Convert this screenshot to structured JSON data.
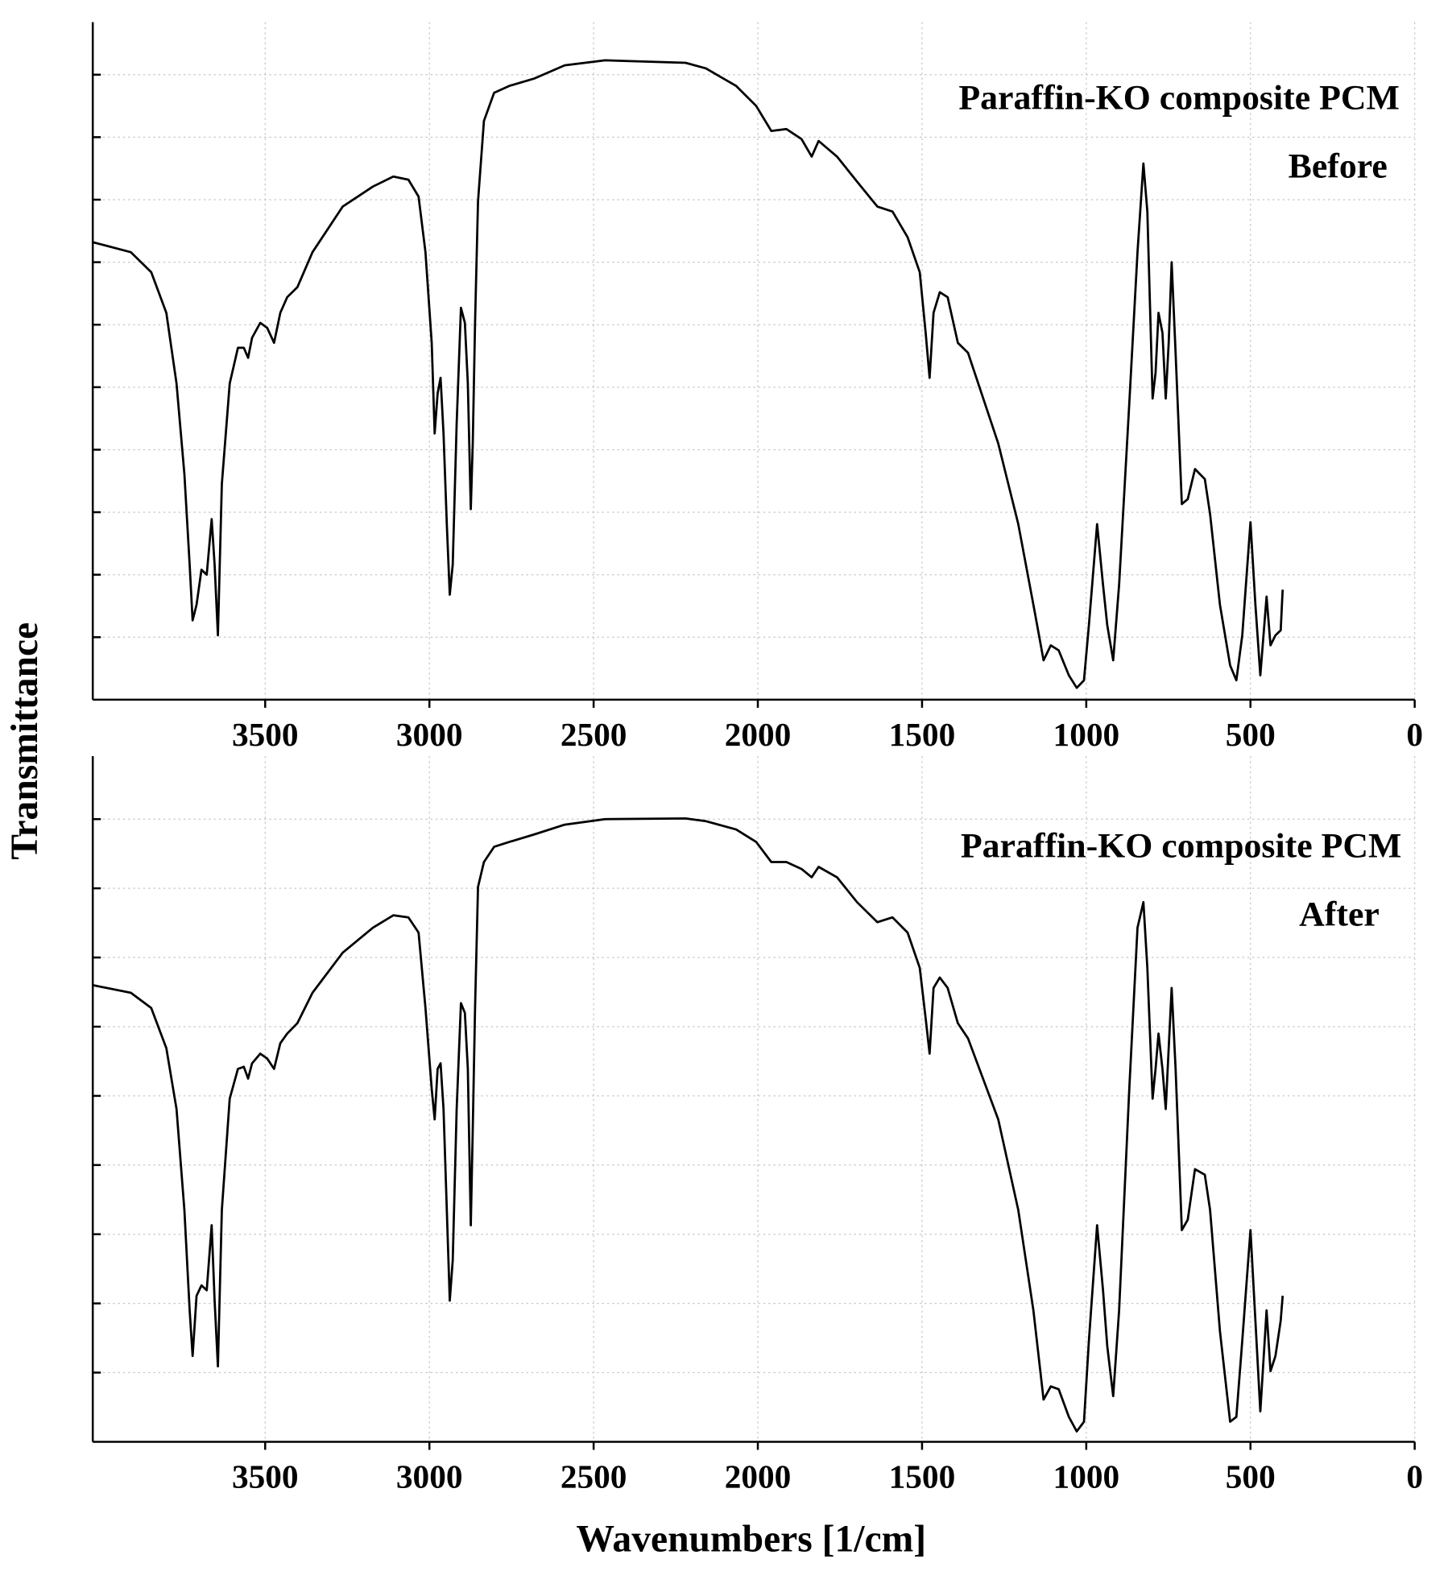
{
  "chart_data": [
    {
      "type": "line",
      "annotations": [
        "Paraffin-KO composite PCM",
        "Before"
      ],
      "ylabel": "Transmittance",
      "x": [
        4025,
        3909,
        3847,
        3801,
        3770,
        3746,
        3730,
        3721,
        3709,
        3694,
        3678,
        3663,
        3654,
        3644,
        3632,
        3608,
        3583,
        3565,
        3552,
        3540,
        3515,
        3494,
        3473,
        3454,
        3433,
        3402,
        3356,
        3264,
        3172,
        3110,
        3064,
        3033,
        3012,
        2993,
        2984,
        2975,
        2966,
        2957,
        2947,
        2938,
        2929,
        2917,
        2904,
        2892,
        2883,
        2874,
        2868,
        2861,
        2852,
        2834,
        2803,
        2757,
        2680,
        2588,
        2465,
        2220,
        2158,
        2066,
        2005,
        1959,
        1913,
        1867,
        1836,
        1815,
        1759,
        1698,
        1636,
        1590,
        1544,
        1507,
        1489,
        1477,
        1465,
        1446,
        1422,
        1391,
        1360,
        1268,
        1207,
        1161,
        1130,
        1108,
        1084,
        1053,
        1029,
        1007,
        992,
        967,
        949,
        936,
        918,
        900,
        869,
        844,
        826,
        814,
        798,
        789,
        780,
        768,
        758,
        749,
        740,
        728,
        709,
        691,
        669,
        639,
        623,
        593,
        562,
        543,
        525,
        500,
        485,
        470,
        451,
        439,
        424,
        408,
        402
      ],
      "values": [
        7.32,
        7.16,
        6.84,
        6.19,
        5.06,
        3.61,
        2.16,
        1.27,
        1.52,
        2.08,
        2.0,
        2.89,
        2.16,
        1.03,
        3.45,
        5.06,
        5.63,
        5.63,
        5.47,
        5.79,
        6.03,
        5.95,
        5.71,
        6.19,
        6.44,
        6.6,
        7.16,
        7.89,
        8.21,
        8.37,
        8.32,
        8.05,
        7.16,
        5.71,
        4.26,
        4.9,
        5.15,
        4.26,
        2.81,
        1.68,
        2.16,
        4.42,
        6.27,
        6.03,
        5.06,
        3.05,
        4.1,
        6.03,
        7.97,
        9.26,
        9.71,
        9.82,
        9.94,
        10.15,
        10.23,
        10.19,
        10.1,
        9.82,
        9.5,
        9.1,
        9.13,
        8.97,
        8.69,
        8.94,
        8.69,
        8.29,
        7.89,
        7.81,
        7.4,
        6.84,
        5.87,
        5.15,
        6.19,
        6.52,
        6.44,
        5.71,
        5.55,
        4.1,
        2.81,
        1.52,
        0.63,
        0.87,
        0.79,
        0.39,
        0.19,
        0.31,
        1.19,
        2.81,
        1.84,
        1.19,
        0.63,
        1.84,
        4.74,
        7.16,
        8.58,
        7.81,
        4.82,
        5.23,
        6.19,
        5.87,
        4.82,
        5.71,
        7.0,
        5.55,
        3.13,
        3.21,
        3.69,
        3.53,
        2.97,
        1.52,
        0.55,
        0.31,
        1.03,
        2.84,
        1.52,
        0.39,
        1.65,
        0.87,
        1.03,
        1.11,
        1.76
      ],
      "color": "#000000",
      "xlim": [
        4025,
        0
      ],
      "xticks": [
        3500,
        3000,
        2500,
        2000,
        1500,
        1000,
        500,
        0
      ],
      "ylim": [
        0,
        10.84
      ],
      "yticks": [
        1,
        2,
        3,
        4,
        5,
        6,
        7,
        8,
        9,
        10
      ],
      "grid": true
    },
    {
      "type": "line",
      "annotations": [
        "Paraffin-KO composite PCM",
        "After"
      ],
      "xlabel": "Wavenumbers [1/cm]",
      "x": [
        4025,
        3909,
        3847,
        3801,
        3770,
        3746,
        3730,
        3721,
        3709,
        3694,
        3678,
        3663,
        3654,
        3644,
        3632,
        3608,
        3583,
        3565,
        3552,
        3540,
        3515,
        3494,
        3473,
        3454,
        3433,
        3402,
        3356,
        3264,
        3172,
        3110,
        3064,
        3033,
        3012,
        2993,
        2984,
        2975,
        2966,
        2957,
        2947,
        2938,
        2929,
        2917,
        2904,
        2892,
        2883,
        2874,
        2868,
        2861,
        2852,
        2834,
        2803,
        2757,
        2680,
        2588,
        2465,
        2220,
        2158,
        2066,
        2005,
        1959,
        1913,
        1867,
        1836,
        1815,
        1759,
        1698,
        1636,
        1590,
        1544,
        1507,
        1489,
        1477,
        1465,
        1446,
        1422,
        1391,
        1360,
        1268,
        1207,
        1161,
        1130,
        1108,
        1084,
        1053,
        1029,
        1007,
        992,
        967,
        949,
        936,
        918,
        900,
        869,
        844,
        826,
        814,
        798,
        789,
        780,
        768,
        758,
        749,
        740,
        728,
        709,
        691,
        669,
        639,
        623,
        593,
        562,
        543,
        525,
        500,
        485,
        470,
        451,
        439,
        424,
        408,
        402
      ],
      "values": [
        6.6,
        6.49,
        6.27,
        5.69,
        4.81,
        3.35,
        1.9,
        1.24,
        2.11,
        2.26,
        2.19,
        3.13,
        2.04,
        1.09,
        3.35,
        4.96,
        5.39,
        5.42,
        5.25,
        5.47,
        5.61,
        5.54,
        5.39,
        5.76,
        5.9,
        6.05,
        6.49,
        7.07,
        7.43,
        7.61,
        7.58,
        7.36,
        6.27,
        5.1,
        4.66,
        5.39,
        5.47,
        4.81,
        3.35,
        2.04,
        2.62,
        4.81,
        6.34,
        6.2,
        5.39,
        3.13,
        4.52,
        6.27,
        8.02,
        8.38,
        8.6,
        8.67,
        8.78,
        8.92,
        9.0,
        9.01,
        8.97,
        8.85,
        8.67,
        8.38,
        8.38,
        8.28,
        8.16,
        8.31,
        8.16,
        7.8,
        7.51,
        7.58,
        7.36,
        6.85,
        6.12,
        5.61,
        6.56,
        6.71,
        6.56,
        6.05,
        5.83,
        4.66,
        3.35,
        1.9,
        0.61,
        0.8,
        0.76,
        0.36,
        0.15,
        0.29,
        1.46,
        3.13,
        2.19,
        1.38,
        0.66,
        1.9,
        5.1,
        7.43,
        7.8,
        6.85,
        4.96,
        5.39,
        5.9,
        5.39,
        4.81,
        5.69,
        6.56,
        5.39,
        3.06,
        3.21,
        3.94,
        3.86,
        3.35,
        1.6,
        0.29,
        0.36,
        1.46,
        3.06,
        1.75,
        0.44,
        1.9,
        1.02,
        1.24,
        1.75,
        2.11
      ],
      "color": "#000000",
      "xlim": [
        4025,
        0
      ],
      "xticks": [
        3500,
        3000,
        2500,
        2000,
        1500,
        1000,
        500,
        0
      ],
      "ylim": [
        0,
        9.91
      ],
      "yticks": [
        1,
        2,
        3,
        4,
        5,
        6,
        7,
        8,
        9
      ],
      "grid": true
    }
  ]
}
